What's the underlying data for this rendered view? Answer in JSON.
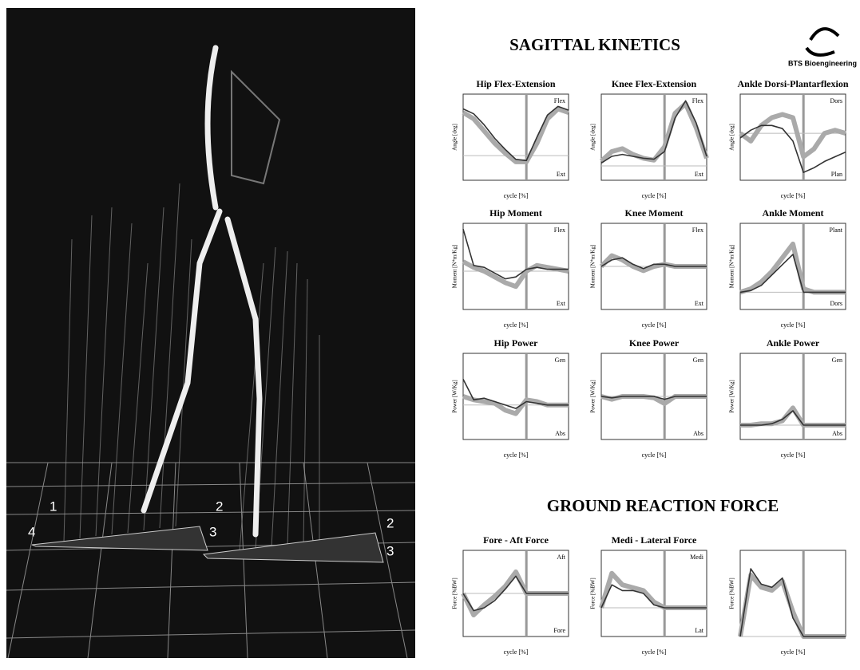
{
  "scene": {
    "plate_labels": [
      "1",
      "2",
      "3",
      "4",
      "2",
      "3"
    ]
  },
  "report": {
    "title": "SAGITTAL KINETICS",
    "logo": "BTS Bioengineering",
    "section2": "GROUND REACTION FORCE",
    "xlabel": "cycle [%]",
    "cycle_x": [
      0,
      10,
      20,
      30,
      40,
      50,
      60,
      70,
      80,
      90,
      100
    ],
    "panels": [
      {
        "title": "Hip Flex-Extension",
        "ylabel": "Angle [deg]",
        "top": "Flex",
        "bottom": "Ext",
        "ylim": [
          -20,
          50
        ],
        "normal": [
          35,
          30,
          20,
          10,
          2,
          -5,
          -5,
          10,
          30,
          38,
          35
        ],
        "patient": [
          38,
          34,
          25,
          14,
          5,
          -3,
          -4,
          15,
          33,
          40,
          37
        ]
      },
      {
        "title": "Knee Flex-Extension",
        "ylabel": "Angle [deg]",
        "top": "Flex",
        "bottom": "Ext",
        "ylim": [
          -15,
          75
        ],
        "normal": [
          5,
          15,
          18,
          12,
          8,
          6,
          20,
          55,
          65,
          40,
          8
        ],
        "patient": [
          3,
          10,
          12,
          10,
          8,
          7,
          15,
          50,
          68,
          45,
          10
        ]
      },
      {
        "title": "Ankle Dorsi-Plantarflexion",
        "ylabel": "Angle [deg]",
        "top": "Dors",
        "bottom": "Plan",
        "ylim": [
          -30,
          25
        ],
        "normal": [
          0,
          -5,
          5,
          10,
          12,
          10,
          -15,
          -10,
          0,
          2,
          0
        ],
        "patient": [
          -3,
          2,
          5,
          5,
          3,
          -5,
          -25,
          -22,
          -18,
          -15,
          -12
        ]
      },
      {
        "title": "Hip Moment",
        "ylabel": "Moment [N*m/Kg]",
        "top": "Flex",
        "bottom": "Ext",
        "ylim": [
          -2,
          2.5
        ],
        "normal": [
          0.5,
          0.2,
          0,
          -0.3,
          -0.6,
          -0.8,
          0,
          0.3,
          0.2,
          0.1,
          0
        ],
        "patient": [
          2.2,
          0.3,
          0.2,
          -0.1,
          -0.4,
          -0.3,
          0.1,
          0.2,
          0.1,
          0.1,
          0.1
        ]
      },
      {
        "title": "Knee Moment",
        "ylabel": "Moment [N*m/Kg]",
        "top": "Flex",
        "bottom": "Ext",
        "ylim": [
          -2,
          2
        ],
        "normal": [
          0,
          0.5,
          0.3,
          0,
          -0.2,
          0,
          0.1,
          0,
          0,
          0,
          0
        ],
        "patient": [
          0,
          0.3,
          0.4,
          0.1,
          -0.1,
          0.1,
          0.1,
          0,
          0,
          0,
          0
        ]
      },
      {
        "title": "Ankle Moment",
        "ylabel": "Moment [N*m/Kg]",
        "top": "Plant",
        "bottom": "Dors",
        "ylim": [
          -0.5,
          2
        ],
        "normal": [
          0,
          0.1,
          0.3,
          0.6,
          1,
          1.4,
          0.1,
          0,
          0,
          0,
          0
        ],
        "patient": [
          0,
          0.05,
          0.2,
          0.5,
          0.8,
          1.1,
          0,
          0,
          0,
          0,
          0
        ]
      },
      {
        "title": "Hip Power",
        "ylabel": "Power [W/Kg]",
        "top": "Gen",
        "bottom": "Abs",
        "ylim": [
          -2,
          3
        ],
        "normal": [
          0.5,
          0.3,
          0.2,
          0.1,
          -0.3,
          -0.5,
          0.3,
          0.2,
          0,
          0,
          0
        ],
        "patient": [
          1.5,
          0.3,
          0.4,
          0.2,
          0,
          -0.2,
          0.2,
          0.1,
          0,
          0,
          0
        ]
      },
      {
        "title": "Knee Power",
        "ylabel": "Power [W/Kg]",
        "top": "Gen",
        "bottom": "Abs",
        "ylim": [
          -3,
          3
        ],
        "normal": [
          0,
          -0.2,
          0,
          0,
          0,
          -0.1,
          -0.5,
          0,
          0,
          0,
          0
        ],
        "patient": [
          0,
          -0.1,
          0,
          0,
          0,
          0,
          -0.2,
          0,
          0,
          0,
          0
        ]
      },
      {
        "title": "Ankle Power",
        "ylabel": "Power [W/Kg]",
        "top": "Gen",
        "bottom": "Abs",
        "ylim": [
          -1,
          5
        ],
        "normal": [
          0,
          0,
          0.1,
          0.1,
          0.3,
          1.2,
          0,
          0,
          0,
          0,
          0
        ],
        "patient": [
          0,
          0,
          0,
          0.1,
          0.4,
          1,
          0,
          0,
          0,
          0,
          0
        ]
      },
      {
        "title": "Fore - Aft Force",
        "ylabel": "Force [%BW]",
        "top": "Aft",
        "bottom": "Fore",
        "ylim": [
          -30,
          30
        ],
        "normal": [
          0,
          -15,
          -8,
          -2,
          5,
          15,
          0,
          0,
          0,
          0,
          0
        ],
        "patient": [
          0,
          -12,
          -10,
          -5,
          3,
          12,
          0,
          0,
          0,
          0,
          0
        ]
      },
      {
        "title": "Medi - Lateral Force",
        "ylabel": "Force [%BW]",
        "top": "Medi",
        "bottom": "Lat",
        "ylim": [
          -10,
          20
        ],
        "normal": [
          0,
          12,
          8,
          7,
          6,
          2,
          0,
          0,
          0,
          0,
          0
        ],
        "patient": [
          0,
          8,
          6,
          6,
          5,
          1,
          0,
          0,
          0,
          0,
          0
        ]
      },
      {
        "ylabel": "Force [%BW]",
        "ylim": [
          0,
          140
        ],
        "normal": [
          0,
          100,
          80,
          75,
          90,
          40,
          0,
          0,
          0,
          0,
          0
        ],
        "patient": [
          0,
          110,
          85,
          80,
          95,
          30,
          0,
          0,
          0,
          0,
          0
        ]
      }
    ]
  }
}
